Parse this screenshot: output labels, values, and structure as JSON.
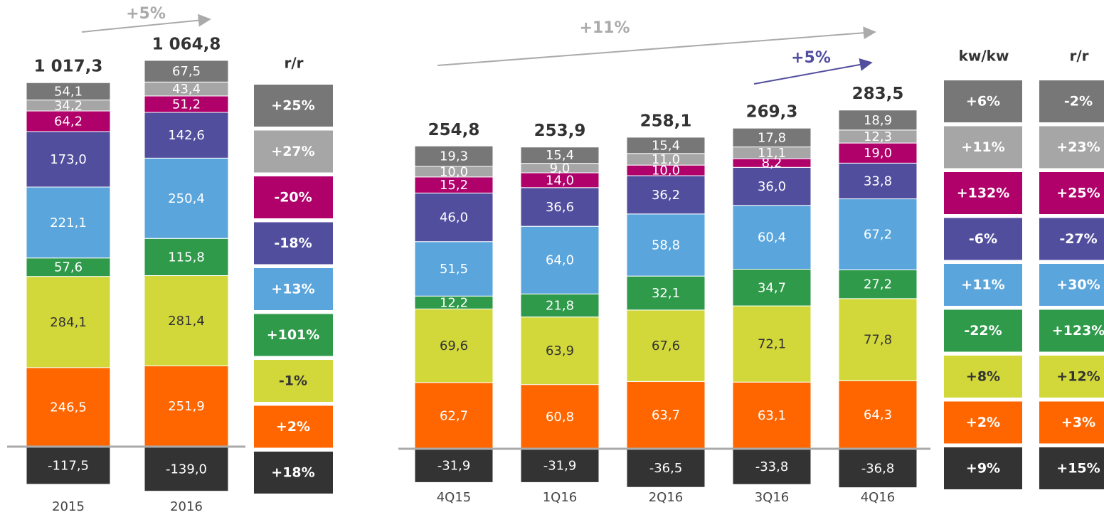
{
  "chart_data": [
    {
      "type": "stacked_bar",
      "categories": [
        "2015",
        "2016"
      ],
      "series": [
        {
          "color": "#333333",
          "values": [
            -117.5,
            -139.0
          ],
          "value_labels": [
            "-117,5",
            "-139,0"
          ]
        },
        {
          "color": "#ff6600",
          "values": [
            246.5,
            251.9
          ],
          "value_labels": [
            "246,5",
            "251,9"
          ]
        },
        {
          "color": "#d2d83a",
          "values": [
            284.1,
            281.4
          ],
          "value_labels": [
            "284,1",
            "281,4"
          ]
        },
        {
          "color": "#2e9a4a",
          "values": [
            57.6,
            115.8
          ],
          "value_labels": [
            "57,6",
            "115,8"
          ]
        },
        {
          "color": "#5aa5dc",
          "values": [
            221.1,
            250.4
          ],
          "value_labels": [
            "221,1",
            "250,4"
          ]
        },
        {
          "color": "#524e9e",
          "values": [
            173.0,
            142.6
          ],
          "value_labels": [
            "173,0",
            "142,6"
          ]
        },
        {
          "color": "#b0006a",
          "values": [
            64.2,
            51.2
          ],
          "value_labels": [
            "64,2",
            "51,2"
          ]
        },
        {
          "color": "#a6a6a6",
          "values": [
            34.2,
            43.4
          ],
          "value_labels": [
            "34,2",
            "43,4"
          ]
        },
        {
          "color": "#777777",
          "values": [
            54.1,
            67.5
          ],
          "value_labels": [
            "54,1",
            "67,5"
          ]
        }
      ],
      "totals": {
        "values": [
          1017.3,
          1064.8
        ],
        "value_labels": [
          "1 017,3",
          "1 064,8"
        ]
      },
      "change_columns": [
        {
          "title": "r/r",
          "values": [
            18,
            2,
            -1,
            101,
            13,
            -18,
            -20,
            27,
            25
          ],
          "value_labels": [
            "+18%",
            "+2%",
            "-1%",
            "+101%",
            "+13%",
            "-18%",
            "-20%",
            "+27%",
            "+25%"
          ]
        }
      ],
      "annotations": [
        "+5%"
      ]
    },
    {
      "type": "stacked_bar",
      "categories": [
        "4Q15",
        "1Q16",
        "2Q16",
        "3Q16",
        "4Q16"
      ],
      "series": [
        {
          "color": "#333333",
          "values": [
            -31.9,
            -31.9,
            -36.5,
            -33.8,
            -36.8
          ],
          "value_labels": [
            "-31,9",
            "-31,9",
            "-36,5",
            "-33,8",
            "-36,8"
          ]
        },
        {
          "color": "#ff6600",
          "values": [
            62.7,
            60.8,
            63.7,
            63.1,
            64.3
          ],
          "value_labels": [
            "62,7",
            "60,8",
            "63,7",
            "63,1",
            "64,3"
          ]
        },
        {
          "color": "#d2d83a",
          "values": [
            69.6,
            63.9,
            67.6,
            72.1,
            77.8
          ],
          "value_labels": [
            "69,6",
            "63,9",
            "67,6",
            "72,1",
            "77,8"
          ]
        },
        {
          "color": "#2e9a4a",
          "values": [
            12.2,
            21.8,
            32.1,
            34.7,
            27.2
          ],
          "value_labels": [
            "12,2",
            "21,8",
            "32,1",
            "34,7",
            "27,2"
          ]
        },
        {
          "color": "#5aa5dc",
          "values": [
            51.5,
            64.0,
            58.8,
            60.4,
            67.2
          ],
          "value_labels": [
            "51,5",
            "64,0",
            "58,8",
            "60,4",
            "67,2"
          ]
        },
        {
          "color": "#524e9e",
          "values": [
            46.0,
            36.6,
            36.2,
            36.0,
            33.8
          ],
          "value_labels": [
            "46,0",
            "36,6",
            "36,2",
            "36,0",
            "33,8"
          ]
        },
        {
          "color": "#b0006a",
          "values": [
            15.2,
            14.0,
            10.0,
            8.2,
            19.0
          ],
          "value_labels": [
            "15,2",
            "14,0",
            "10,0",
            "8,2",
            "19,0"
          ]
        },
        {
          "color": "#a6a6a6",
          "values": [
            10.0,
            9.0,
            11.0,
            11.1,
            12.3
          ],
          "value_labels": [
            "10,0",
            "9,0",
            "11,0",
            "11,1",
            "12,3"
          ]
        },
        {
          "color": "#777777",
          "values": [
            19.3,
            15.4,
            15.4,
            17.8,
            18.9
          ],
          "value_labels": [
            "19,3",
            "15,4",
            "15,4",
            "17,8",
            "18,9"
          ]
        }
      ],
      "totals": {
        "values": [
          254.8,
          253.9,
          258.1,
          269.3,
          283.5
        ],
        "value_labels": [
          "254,8",
          "253,9",
          "258,1",
          "269,3",
          "283,5"
        ]
      },
      "change_columns": [
        {
          "title": "kw/kw",
          "values": [
            9,
            2,
            8,
            -22,
            11,
            -6,
            132,
            11,
            6
          ],
          "value_labels": [
            "+9%",
            "+2%",
            "+8%",
            "-22%",
            "+11%",
            "-6%",
            "+132%",
            "+11%",
            "+6%"
          ]
        },
        {
          "title": "r/r",
          "values": [
            15,
            3,
            12,
            123,
            30,
            -27,
            25,
            23,
            -2
          ],
          "value_labels": [
            "+15%",
            "+3%",
            "+12%",
            "+123%",
            "+30%",
            "-27%",
            "+25%",
            "+23%",
            "-2%"
          ]
        }
      ],
      "annotations": [
        "+11%",
        "+5%"
      ]
    }
  ]
}
